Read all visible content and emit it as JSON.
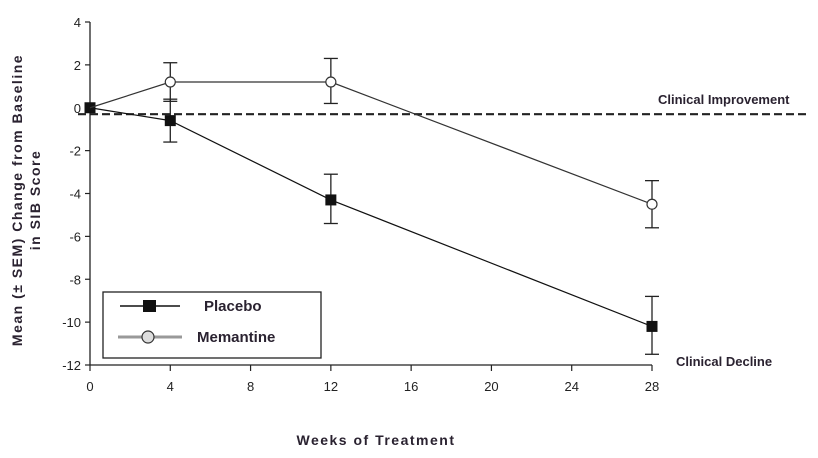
{
  "chart_data": {
    "type": "line",
    "title": "",
    "xlabel": "Weeks of Treatment",
    "ylabel_line1": "Mean (± SEM) Change from Baseline",
    "ylabel_line2": "in SIB Score",
    "xlim": [
      0,
      28
    ],
    "ylim": [
      -12,
      4
    ],
    "x_ticks": [
      0,
      4,
      8,
      12,
      16,
      20,
      24,
      28
    ],
    "x_tick_labels": [
      "0",
      "4",
      "8",
      "12",
      "16",
      "20",
      "24",
      "28"
    ],
    "y_ticks": [
      4,
      2,
      0,
      -2,
      -4,
      -6,
      -8,
      -10,
      -12
    ],
    "y_tick_labels": [
      "4",
      "2",
      "0",
      "-2",
      "-4",
      "-6",
      "-8",
      "-10",
      "-12"
    ],
    "grid": false,
    "legend_position": "bottom-left",
    "series": [
      {
        "name": "Placebo",
        "marker": "filled-square",
        "color": "#111111",
        "x": [
          0,
          4,
          12,
          28
        ],
        "y": [
          0,
          -0.6,
          -4.3,
          -10.2
        ],
        "err_low": [
          null,
          -1.6,
          -5.4,
          -11.5
        ],
        "err_high": [
          null,
          0.4,
          -3.1,
          -8.8
        ]
      },
      {
        "name": "Memantine",
        "marker": "open-circle",
        "color": "#333333",
        "x": [
          0,
          4,
          12,
          28
        ],
        "y": [
          0,
          1.2,
          1.2,
          -4.5
        ],
        "err_low": [
          null,
          0.3,
          0.2,
          -5.6
        ],
        "err_high": [
          null,
          2.1,
          2.3,
          -3.4
        ]
      }
    ],
    "reference_line": {
      "y": -0.3,
      "style": "dashed"
    },
    "annotations": {
      "improvement": "Clinical Improvement",
      "decline": "Clinical Decline"
    }
  }
}
